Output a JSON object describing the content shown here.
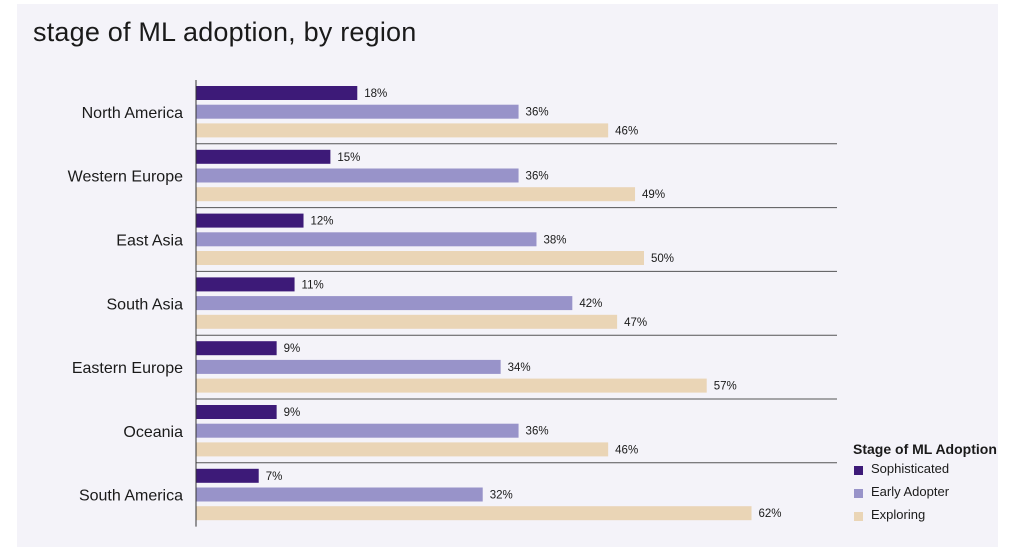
{
  "chart_data": {
    "type": "bar",
    "orientation": "horizontal",
    "title": "stage of ML adoption, by region",
    "categories": [
      "North America",
      "Western Europe",
      "East Asia",
      "South Asia",
      "Eastern Europe",
      "Oceania",
      "South America"
    ],
    "series": [
      {
        "name": "Sophisticated",
        "color": "#3d1a78",
        "values": [
          18,
          15,
          12,
          11,
          9,
          9,
          7
        ]
      },
      {
        "name": "Early Adopter",
        "color": "#9893c9",
        "values": [
          36,
          36,
          38,
          42,
          34,
          36,
          32
        ]
      },
      {
        "name": "Exploring",
        "color": "#ead5b6",
        "values": [
          46,
          49,
          50,
          47,
          57,
          46,
          62
        ]
      }
    ],
    "value_suffix": "%",
    "xlim": [
      0,
      70
    ],
    "legend": {
      "title": "Stage of ML Adoption",
      "placement": "bottom-right"
    },
    "grid": false
  }
}
